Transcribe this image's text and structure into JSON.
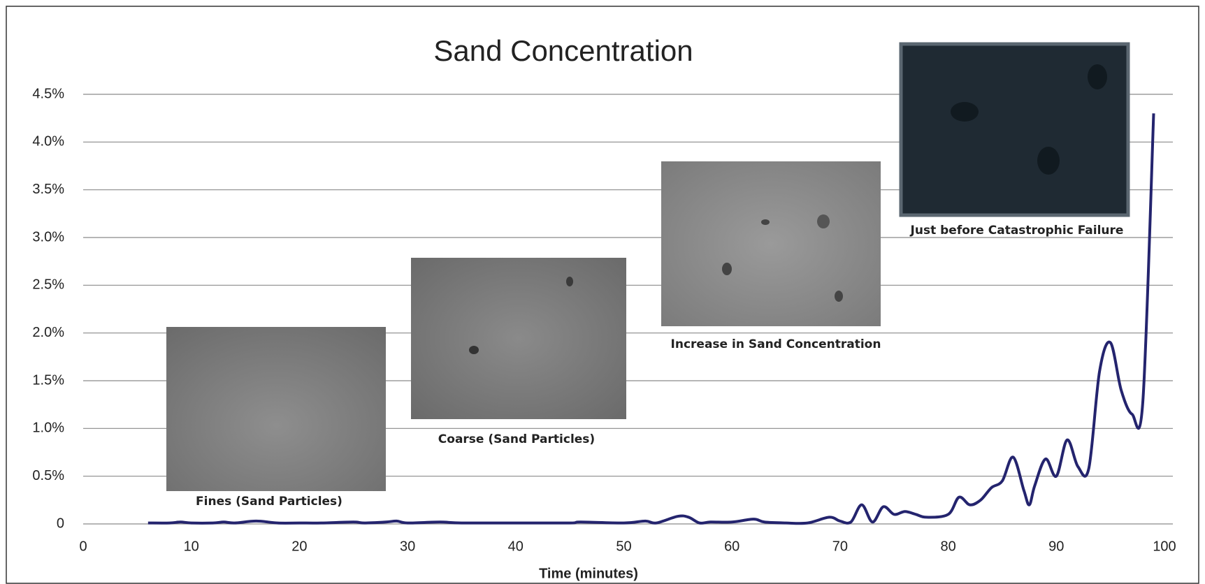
{
  "chart_data": {
    "type": "line",
    "title": "Sand Concentration",
    "x_label": "Time (minutes)",
    "x": [
      6,
      8,
      9,
      10,
      12,
      13,
      14,
      16,
      18,
      20,
      22,
      25,
      26,
      28,
      29,
      30,
      33,
      35,
      40,
      45,
      46,
      50,
      52,
      53,
      55,
      56,
      57,
      58,
      60,
      62,
      63,
      65,
      67,
      69,
      70,
      71,
      72,
      73,
      74,
      75,
      76,
      77,
      78,
      80,
      81,
      82,
      83,
      84,
      85,
      86,
      87,
      87.5,
      88,
      89,
      90,
      91,
      92,
      93,
      94,
      95,
      96,
      97,
      98,
      99
    ],
    "series": [
      {
        "color": "#24246e",
        "values": [
          0.01,
          0.01,
          0.02,
          0.01,
          0.01,
          0.02,
          0.01,
          0.03,
          0.01,
          0.01,
          0.01,
          0.02,
          0.01,
          0.02,
          0.03,
          0.01,
          0.02,
          0.01,
          0.01,
          0.01,
          0.02,
          0.01,
          0.03,
          0.01,
          0.08,
          0.07,
          0.01,
          0.02,
          0.02,
          0.05,
          0.02,
          0.01,
          0.01,
          0.07,
          0.03,
          0.02,
          0.2,
          0.02,
          0.18,
          0.1,
          0.13,
          0.1,
          0.07,
          0.1,
          0.28,
          0.2,
          0.25,
          0.38,
          0.45,
          0.7,
          0.35,
          0.2,
          0.4,
          0.68,
          0.5,
          0.88,
          0.6,
          0.58,
          1.6,
          1.9,
          1.4,
          1.15,
          1.28,
          4.3
        ]
      }
    ],
    "xlim": [
      0,
      100
    ],
    "xticks": [
      0,
      10,
      20,
      30,
      40,
      50,
      60,
      70,
      80,
      90,
      100
    ],
    "ylim": [
      0,
      4.5
    ],
    "yticks": [
      0,
      {
        "value": 0.5,
        "label": "0.5%"
      },
      {
        "value": 1.0,
        "label": "1.0%"
      },
      {
        "value": 1.5,
        "label": "1.5%"
      },
      {
        "value": 2.0,
        "label": "2.0%"
      },
      {
        "value": 2.5,
        "label": "2.5%"
      },
      {
        "value": 3.0,
        "label": "3.0%"
      },
      {
        "value": 3.5,
        "label": "3.5%"
      },
      {
        "value": 4.0,
        "label": "4.0%"
      },
      {
        "value": 4.5,
        "label": "4.5%"
      }
    ],
    "grid": true,
    "annotations": [
      "Fines (Sand Particles)",
      "Coarse (Sand Particles)",
      "Increase in Sand Concentration",
      "Just before Catastrophic Failure"
    ]
  }
}
